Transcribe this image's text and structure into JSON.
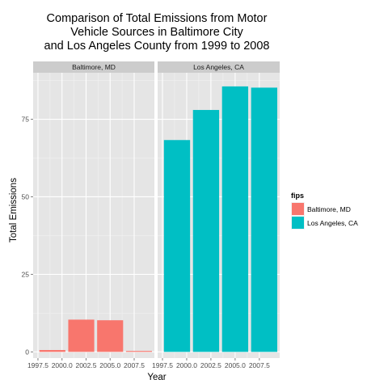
{
  "chart_data": {
    "type": "bar",
    "title_lines": [
      "Comparison of Total Emissions from Motor",
      "Vehicle Sources in Baltimore City",
      "and Los Angeles County from 1999 to 2008"
    ],
    "xlabel": "Year",
    "ylabel": "Total Emissions",
    "x": [
      1999,
      2002,
      2005,
      2008
    ],
    "xlim": [
      1997.0,
      2009.6
    ],
    "ylim": [
      -2,
      90
    ],
    "y_ticks": [
      0,
      25,
      50,
      75
    ],
    "y_tick_labels": [
      "0",
      "25",
      "50",
      "75"
    ],
    "x_ticks": [
      1997.5,
      2000.0,
      2002.5,
      2005.0,
      2007.5
    ],
    "x_tick_labels": [
      "1997.5",
      "2000.0",
      "2002.5",
      "2005.0",
      "2007.5"
    ],
    "grid": true,
    "bar_width": 2.7,
    "legend": {
      "title": "fips",
      "position": "right"
    },
    "facets": [
      {
        "strip_label": "Baltimore, MD",
        "series": [
          {
            "name": "Baltimore, MD",
            "color": "#F8766D",
            "values": [
              0.6,
              10.4,
              10.2,
              0.3
            ]
          }
        ]
      },
      {
        "strip_label": "Los Angeles, CA",
        "series": [
          {
            "name": "Los Angeles, CA",
            "color": "#00BFC4",
            "values": [
              68.3,
              78.0,
              85.6,
              85.2
            ]
          }
        ]
      }
    ]
  }
}
